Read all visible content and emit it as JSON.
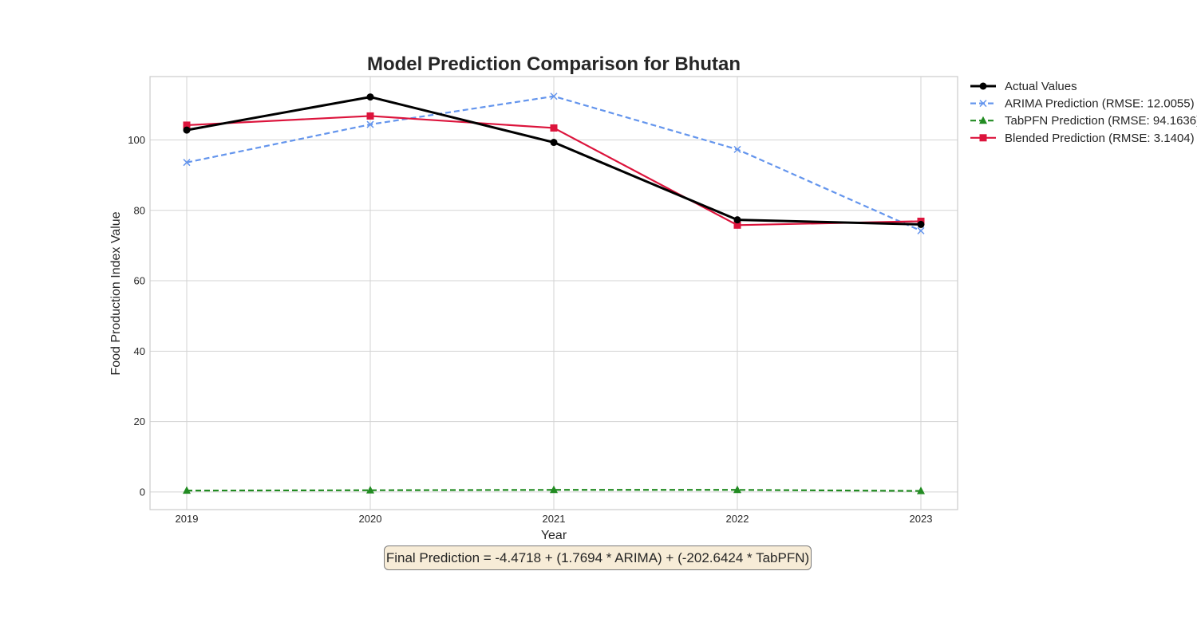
{
  "chart_data": {
    "type": "line",
    "title": "Model Prediction Comparison for Bhutan",
    "xlabel": "Year",
    "ylabel": "Food Production Index Value",
    "x": [
      "2019",
      "2020",
      "2021",
      "2022",
      "2023"
    ],
    "xlim": [
      2018.8,
      2023.2
    ],
    "ylim": [
      -5,
      118
    ],
    "yticks": [
      0,
      20,
      40,
      60,
      80,
      100
    ],
    "grid": true,
    "legend_position": "outside-top-right",
    "series": [
      {
        "name": "Actual Values",
        "values": [
          102.8,
          112.2,
          99.3,
          77.3,
          76.0
        ],
        "color": "#000000",
        "style": "solid",
        "marker": "circle"
      },
      {
        "name": "ARIMA Prediction (RMSE: 12.0055)",
        "values": [
          93.6,
          104.4,
          112.4,
          97.3,
          74.2
        ],
        "color": "#6495ed",
        "style": "dashed",
        "marker": "x"
      },
      {
        "name": "TabPFN Prediction (RMSE: 94.1636)",
        "values": [
          0.4,
          0.5,
          0.6,
          0.6,
          0.3
        ],
        "color": "#228b22",
        "style": "dashed",
        "marker": "triangle"
      },
      {
        "name": "Blended Prediction (RMSE: 3.1404)",
        "values": [
          104.2,
          106.8,
          103.4,
          75.8,
          76.9
        ],
        "color": "#dc143c",
        "style": "solid",
        "marker": "square"
      }
    ],
    "annotation": "Final Prediction = -4.4718 + (1.7694 * ARIMA) + (-202.6424 * TabPFN)"
  }
}
